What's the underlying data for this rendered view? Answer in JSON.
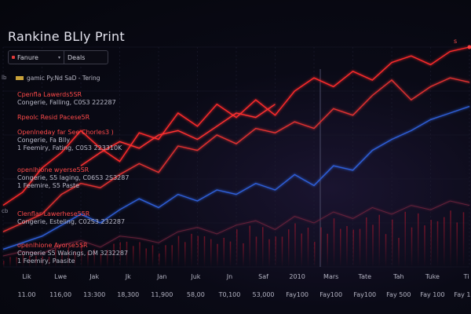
{
  "title": "Rankine BLly Print",
  "toolbar": {
    "select1": "Fanure",
    "select2": "Deals"
  },
  "legend_label": "gamic Py.Nd SaD - Tering",
  "y_marks": [
    "lb",
    "cb"
  ],
  "corner_label": "s",
  "annotations": [
    {
      "head": "Cpenfla Lawerds5SR",
      "sub": [
        "Congerie, Falling, C0S3 222287"
      ]
    },
    {
      "head": "Rpeolc Resid Pacese5R",
      "sub": []
    },
    {
      "head": "Openlneday far See Chorles3 )",
      "sub": [
        "Congerie, Fa Blly",
        "1 Feemiry, Fating, C0S3 223310K"
      ]
    },
    {
      "head": "openlhione wyerse5SR",
      "sub": [
        "Congerie, S5 laging, C06S3 2S3287",
        "1 Feemire, S5 Paste"
      ]
    },
    {
      "head": "Clenflar Lawerhese55R",
      "sub": [
        "Congerie, Esteling, C02S3 232287"
      ]
    },
    {
      "head": "openlhione Ayorse5SR",
      "sub": [
        "Congerie S5 Wakings, DM 3232287",
        "1 Feemiry, Paasite"
      ]
    }
  ],
  "chart_data": {
    "type": "line",
    "title": "Rankine BLly Print",
    "x_top_labels": [
      "Lik",
      "Lwe",
      "Jak",
      "Jk",
      "Jan",
      "Juk",
      "Jn",
      "Saf",
      "2010",
      "Mars",
      "Tate",
      "Tah",
      "Tuke",
      "Ti"
    ],
    "x_bottom_labels": [
      "11.00",
      "116,00",
      "13:300",
      "18,300",
      "11,900",
      "58,00",
      "T0,100",
      "53,000",
      "Fay100",
      "Fay100",
      "Fay100",
      "Fay 500",
      "Fay 100",
      "Fay 100"
    ],
    "ylim": [
      0,
      100
    ],
    "grid": true,
    "series": [
      {
        "color": "#ff2b2b",
        "x": [
          0,
          1,
          2,
          3,
          4,
          5,
          6,
          7,
          8,
          9,
          10,
          11,
          12,
          13,
          14,
          15,
          16,
          17,
          18,
          19,
          20,
          21,
          22,
          23,
          24
        ],
        "values": [
          28,
          34,
          45,
          52,
          62,
          54,
          48,
          61,
          58,
          70,
          64,
          74,
          68,
          76,
          69,
          80,
          86,
          82,
          89,
          85,
          93,
          96,
          92,
          98,
          100
        ]
      },
      {
        "color": "#e03030",
        "x": [
          0,
          1,
          2,
          3,
          4,
          5,
          6,
          7,
          8,
          9,
          10,
          11,
          12,
          13,
          14,
          15,
          16,
          17,
          18,
          19,
          20,
          21,
          22,
          23,
          24
        ],
        "values": [
          16,
          20,
          24,
          33,
          38,
          36,
          42,
          47,
          43,
          55,
          53,
          60,
          56,
          63,
          61,
          66,
          63,
          72,
          69,
          78,
          85,
          76,
          82,
          86,
          84
        ]
      },
      {
        "color": "#2f5fd8",
        "x": [
          0,
          1,
          2,
          3,
          4,
          5,
          6,
          7,
          8,
          9,
          10,
          11,
          12,
          13,
          14,
          15,
          16,
          17,
          18,
          19,
          20,
          21,
          22,
          23,
          24
        ],
        "values": [
          8,
          11,
          14,
          19,
          24,
          20,
          26,
          31,
          27,
          33,
          30,
          35,
          33,
          38,
          35,
          42,
          37,
          46,
          44,
          53,
          58,
          62,
          67,
          70,
          73
        ]
      },
      {
        "color": "#7a2540",
        "x": [
          0,
          1,
          2,
          3,
          4,
          5,
          6,
          7,
          8,
          9,
          10,
          11,
          12,
          13,
          14,
          15,
          16,
          17,
          18,
          19,
          20,
          21,
          22,
          23,
          24
        ],
        "values": [
          5,
          7,
          6,
          10,
          12,
          9,
          14,
          13,
          11,
          16,
          18,
          15,
          19,
          21,
          17,
          23,
          20,
          25,
          22,
          27,
          24,
          28,
          26,
          30,
          28
        ]
      },
      {
        "color": "#ff3030",
        "x": [
          4,
          5,
          6,
          7,
          8,
          9,
          10,
          11,
          12,
          13,
          14
        ],
        "values": [
          46,
          52,
          57,
          54,
          60,
          62,
          58,
          64,
          70,
          68,
          74
        ]
      }
    ]
  }
}
